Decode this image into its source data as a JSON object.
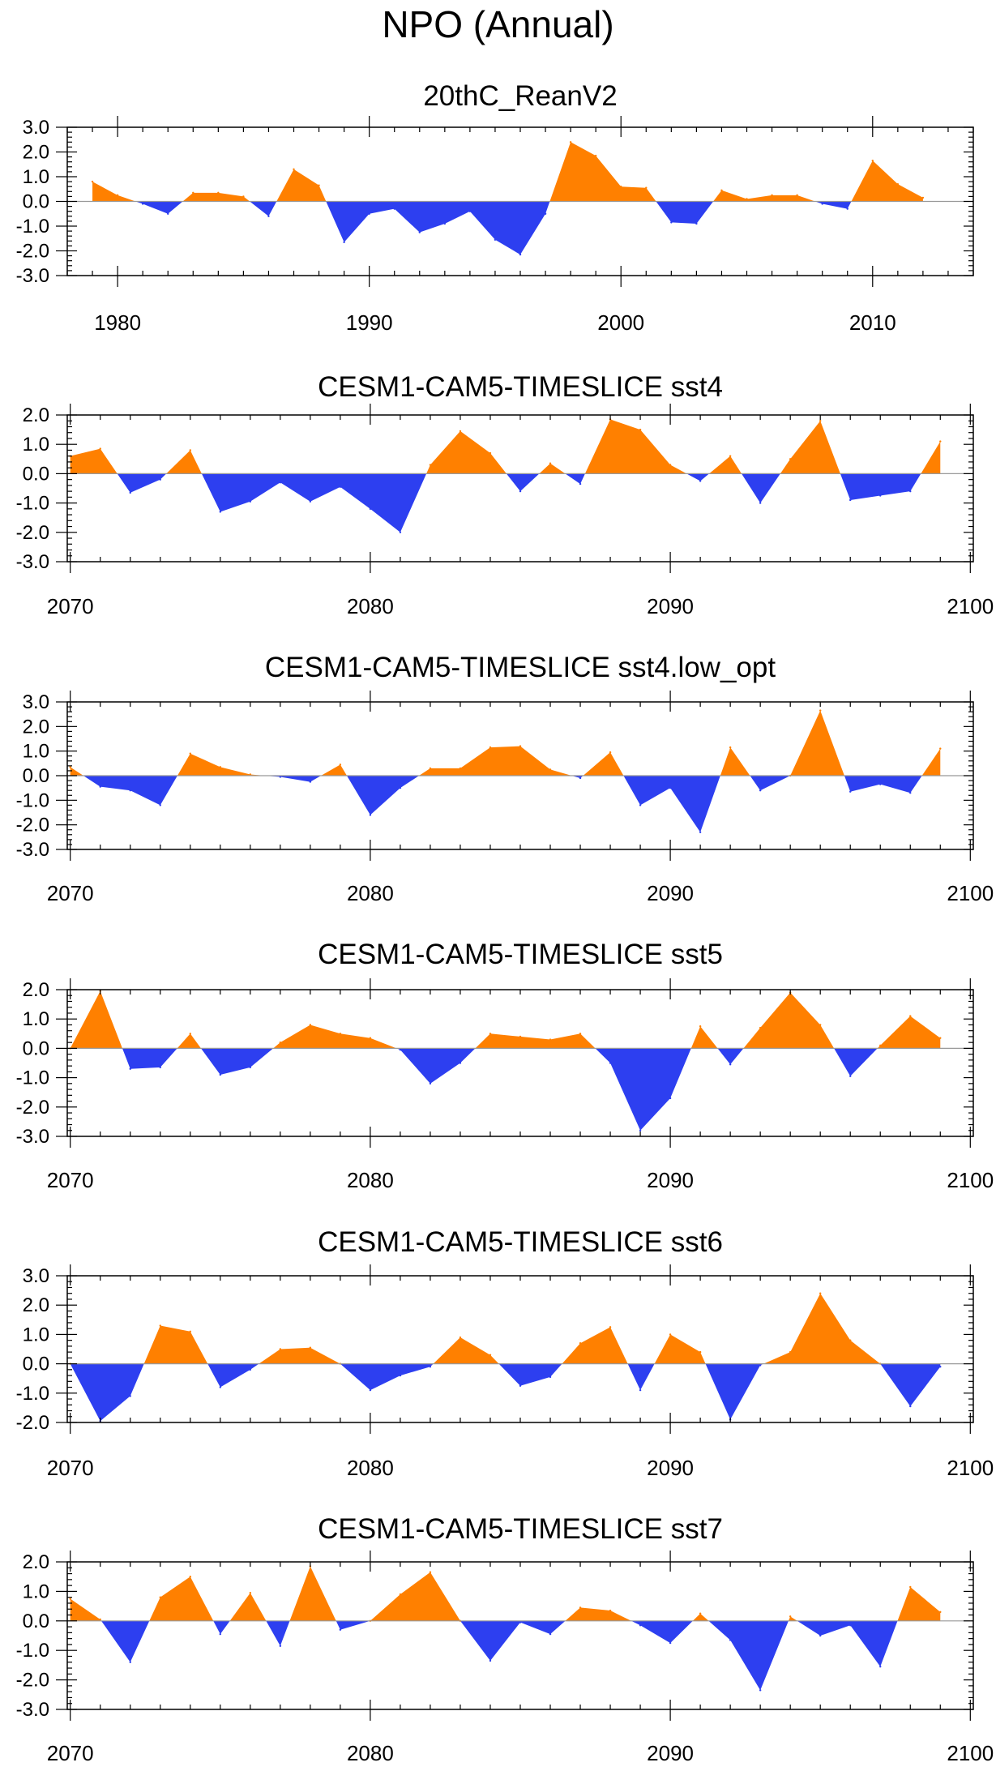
{
  "title": "NPO (Annual)",
  "colors": {
    "positive": "#FF8000",
    "negative": "#2D3FF0",
    "zero_line": "#999999",
    "frame": "#000000"
  },
  "chart_data": [
    {
      "type": "area",
      "title": "20thC_ReanV2",
      "x": [
        1979,
        1980,
        1981,
        1982,
        1983,
        1984,
        1985,
        1986,
        1987,
        1988,
        1989,
        1990,
        1991,
        1992,
        1993,
        1994,
        1995,
        1996,
        1997,
        1998,
        1999,
        2000,
        2001,
        2002,
        2003,
        2004,
        2005,
        2006,
        2007,
        2008,
        2009,
        2010,
        2011,
        2012
      ],
      "values": [
        0.8,
        0.25,
        -0.1,
        -0.5,
        0.35,
        0.35,
        0.2,
        -0.6,
        1.3,
        0.65,
        -1.65,
        -0.5,
        -0.3,
        -1.25,
        -0.9,
        -0.4,
        -1.55,
        -2.15,
        -0.5,
        2.4,
        1.85,
        0.6,
        0.55,
        -0.85,
        -0.9,
        0.45,
        0.1,
        0.25,
        0.25,
        -0.1,
        -0.3,
        1.65,
        0.7,
        0.15
      ],
      "xlim": [
        1978,
        2014
      ],
      "ylim": [
        -3.0,
        3.0
      ],
      "x_ticks": [
        "1980",
        "1990",
        "2000",
        "2010"
      ],
      "y_ticks": [
        "3.0",
        "2.0",
        "1.0",
        "0.0",
        "-1.0",
        "-2.0",
        "-3.0"
      ]
    },
    {
      "type": "area",
      "title": "CESM1-CAM5-TIMESLICE sst4",
      "x": [
        2070,
        2071,
        2072,
        2073,
        2074,
        2075,
        2076,
        2077,
        2078,
        2079,
        2080,
        2081,
        2082,
        2083,
        2084,
        2085,
        2086,
        2087,
        2088,
        2089,
        2090,
        2091,
        2092,
        2093,
        2094,
        2095,
        2096,
        2097,
        2098,
        2099
      ],
      "values": [
        0.6,
        0.85,
        -0.65,
        -0.2,
        0.8,
        -1.3,
        -0.95,
        -0.3,
        -0.95,
        -0.45,
        -1.2,
        -2.0,
        0.3,
        1.45,
        0.7,
        -0.6,
        0.35,
        -0.35,
        1.85,
        1.5,
        0.3,
        -0.25,
        0.6,
        -1.0,
        0.5,
        1.8,
        -0.9,
        -0.75,
        -0.6,
        1.1
      ],
      "xlim": [
        2069.9,
        2100.1
      ],
      "ylim": [
        -3.0,
        2.0
      ],
      "x_ticks": [
        "2070",
        "2080",
        "2090",
        "2100"
      ],
      "y_ticks": [
        "2.0",
        "1.0",
        "0.0",
        "-1.0",
        "-2.0",
        "-3.0"
      ]
    },
    {
      "type": "area",
      "title": "CESM1-CAM5-TIMESLICE sst4.low_opt",
      "x": [
        2070,
        2071,
        2072,
        2073,
        2074,
        2075,
        2076,
        2077,
        2078,
        2079,
        2080,
        2081,
        2082,
        2083,
        2084,
        2085,
        2086,
        2087,
        2088,
        2089,
        2090,
        2091,
        2092,
        2093,
        2094,
        2095,
        2096,
        2097,
        2098,
        2099
      ],
      "values": [
        0.35,
        -0.45,
        -0.6,
        -1.2,
        0.9,
        0.35,
        0.05,
        -0.05,
        -0.25,
        0.45,
        -1.6,
        -0.5,
        0.3,
        0.3,
        1.15,
        1.2,
        0.25,
        -0.1,
        0.95,
        -1.2,
        -0.5,
        -2.3,
        1.15,
        -0.6,
        0.0,
        2.65,
        -0.65,
        -0.35,
        -0.7,
        1.1
      ],
      "xlim": [
        2069.9,
        2100.1
      ],
      "ylim": [
        -3.0,
        3.0
      ],
      "x_ticks": [
        "2070",
        "2080",
        "2090",
        "2100"
      ],
      "y_ticks": [
        "3.0",
        "2.0",
        "1.0",
        "0.0",
        "-1.0",
        "-2.0",
        "-3.0"
      ]
    },
    {
      "type": "area",
      "title": "CESM1-CAM5-TIMESLICE sst5",
      "x": [
        2070,
        2071,
        2072,
        2073,
        2074,
        2075,
        2076,
        2077,
        2078,
        2079,
        2080,
        2081,
        2082,
        2083,
        2084,
        2085,
        2086,
        2087,
        2088,
        2089,
        2090,
        2091,
        2092,
        2093,
        2094,
        2095,
        2096,
        2097,
        2098,
        2099
      ],
      "values": [
        0.0,
        1.95,
        -0.7,
        -0.65,
        0.5,
        -0.9,
        -0.65,
        0.2,
        0.8,
        0.5,
        0.35,
        -0.05,
        -1.2,
        -0.5,
        0.5,
        0.4,
        0.3,
        0.5,
        -0.5,
        -2.8,
        -1.7,
        0.75,
        -0.55,
        0.7,
        1.9,
        0.8,
        -0.95,
        0.1,
        1.1,
        0.35
      ],
      "xlim": [
        2069.9,
        2100.1
      ],
      "ylim": [
        -3.0,
        2.0
      ],
      "x_ticks": [
        "2070",
        "2080",
        "2090",
        "2100"
      ],
      "y_ticks": [
        "2.0",
        "1.0",
        "0.0",
        "-1.0",
        "-2.0",
        "-3.0"
      ]
    },
    {
      "type": "area",
      "title": "CESM1-CAM5-TIMESLICE sst6",
      "x": [
        2070,
        2071,
        2072,
        2073,
        2074,
        2075,
        2076,
        2077,
        2078,
        2079,
        2080,
        2081,
        2082,
        2083,
        2084,
        2085,
        2086,
        2087,
        2088,
        2089,
        2090,
        2091,
        2092,
        2093,
        2094,
        2095,
        2096,
        2097,
        2098,
        2099
      ],
      "values": [
        0.0,
        -1.95,
        -1.1,
        1.3,
        1.1,
        -0.8,
        -0.2,
        0.5,
        0.55,
        0.0,
        -0.9,
        -0.4,
        -0.1,
        0.9,
        0.3,
        -0.75,
        -0.45,
        0.7,
        1.25,
        -0.9,
        1.0,
        0.4,
        -1.9,
        -0.05,
        0.4,
        2.4,
        0.8,
        0.0,
        -1.45,
        -0.1
      ],
      "xlim": [
        2069.9,
        2100.1
      ],
      "ylim": [
        -2.0,
        3.0
      ],
      "x_ticks": [
        "2070",
        "2080",
        "2090",
        "2100"
      ],
      "y_ticks": [
        "3.0",
        "2.0",
        "1.0",
        "0.0",
        "-1.0",
        "-2.0"
      ]
    },
    {
      "type": "area",
      "title": "CESM1-CAM5-TIMESLICE sst7",
      "x": [
        2070,
        2071,
        2072,
        2073,
        2074,
        2075,
        2076,
        2077,
        2078,
        2079,
        2080,
        2081,
        2082,
        2083,
        2084,
        2085,
        2086,
        2087,
        2088,
        2089,
        2090,
        2091,
        2092,
        2093,
        2094,
        2095,
        2096,
        2097,
        2098,
        2099
      ],
      "values": [
        0.75,
        0.05,
        -1.4,
        0.8,
        1.5,
        -0.45,
        0.95,
        -0.85,
        1.85,
        -0.3,
        0.0,
        0.9,
        1.65,
        0.0,
        -1.35,
        -0.05,
        -0.45,
        0.45,
        0.35,
        -0.15,
        -0.75,
        0.25,
        -0.65,
        -2.35,
        0.15,
        -0.5,
        -0.15,
        -1.55,
        1.15,
        0.3
      ],
      "xlim": [
        2069.9,
        2100.1
      ],
      "ylim": [
        -3.0,
        2.0
      ],
      "x_ticks": [
        "2070",
        "2080",
        "2090",
        "2100"
      ],
      "y_ticks": [
        "2.0",
        "1.0",
        "0.0",
        "-1.0",
        "-2.0",
        "-3.0"
      ]
    }
  ]
}
